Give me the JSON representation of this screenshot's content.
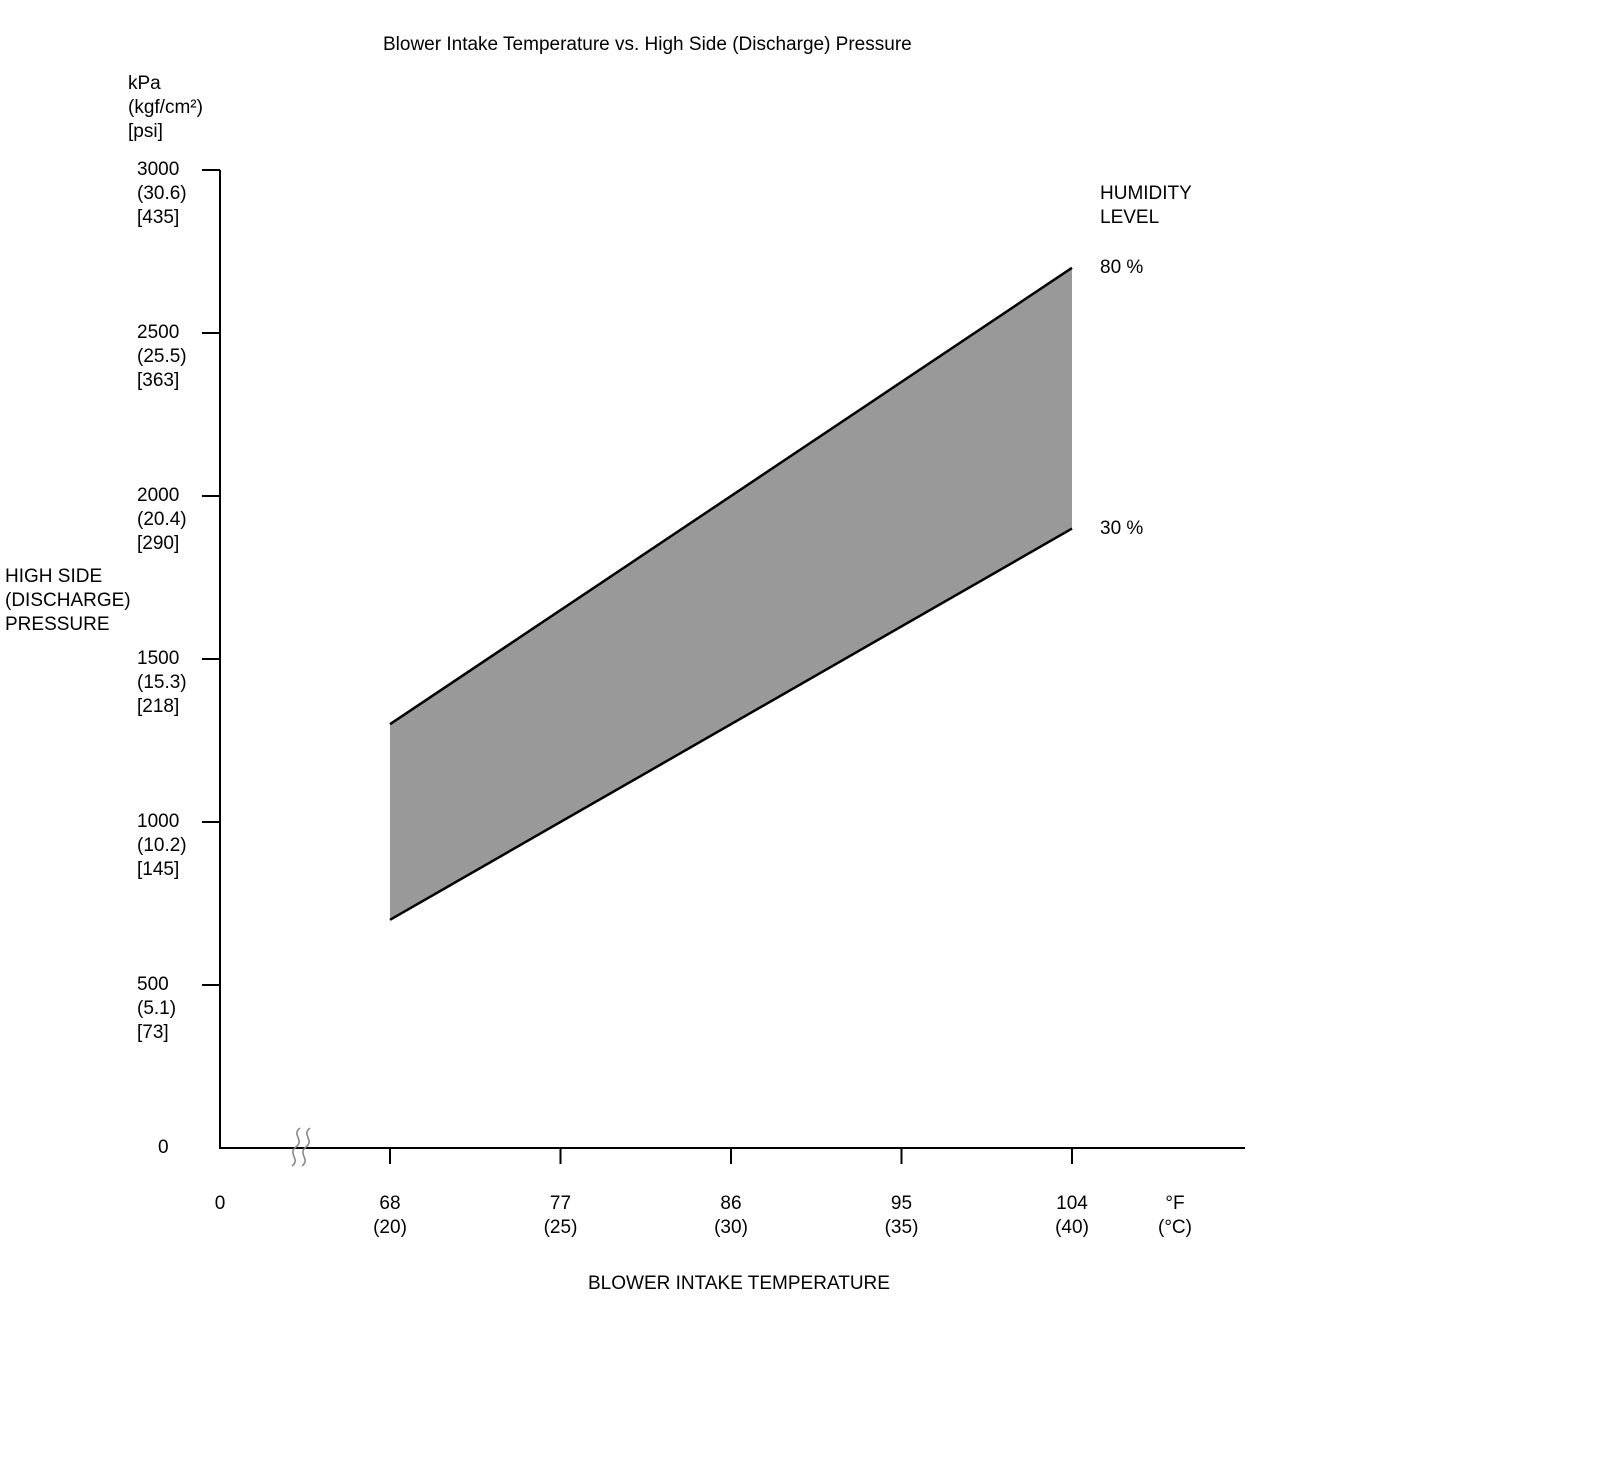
{
  "page": {
    "title": "Blower Intake Temperature vs. High Side (Discharge) Pressure"
  },
  "chart_data": {
    "type": "area",
    "title": "Blower Intake Temperature vs. High Side (Discharge) Pressure",
    "xlabel": "BLOWER INTAKE TEMPERATURE",
    "ylabel_lines": [
      "HIGH SIDE",
      "(DISCHARGE)",
      "PRESSURE"
    ],
    "y_unit_lines": [
      "kPa",
      "(kgf/cm²)",
      "[psi]"
    ],
    "x_unit_lines": [
      "°F",
      "(°C)"
    ],
    "x_axis_origin_label": "0",
    "xlim_f": [
      68,
      104
    ],
    "ylim_kpa": [
      0,
      3000
    ],
    "grid": "off",
    "legend": {
      "position": "top-right",
      "title_lines": [
        "HUMIDITY",
        "LEVEL"
      ]
    },
    "x": [
      68,
      104
    ],
    "x_ticks": [
      {
        "value": 68,
        "lines": [
          "68",
          "(20)"
        ]
      },
      {
        "value": 77,
        "lines": [
          "77",
          "(25)"
        ]
      },
      {
        "value": 86,
        "lines": [
          "86",
          "(30)"
        ]
      },
      {
        "value": 95,
        "lines": [
          "95",
          "(35)"
        ]
      },
      {
        "value": 104,
        "lines": [
          "104",
          "(40)"
        ]
      }
    ],
    "y_ticks": [
      {
        "value": 3000,
        "lines": [
          "3000",
          "(30.6)",
          "[435]"
        ]
      },
      {
        "value": 2500,
        "lines": [
          "2500",
          "(25.5)",
          "[363]"
        ]
      },
      {
        "value": 2000,
        "lines": [
          "2000",
          "(20.4)",
          "[290]"
        ]
      },
      {
        "value": 1500,
        "lines": [
          "1500",
          "(15.3)",
          "[218]"
        ]
      },
      {
        "value": 1000,
        "lines": [
          "1000",
          "(10.2)",
          "[145]"
        ]
      },
      {
        "value": 500,
        "lines": [
          "500",
          "(5.1)",
          "[73]"
        ]
      },
      {
        "value": 0,
        "lines": [
          "0"
        ]
      }
    ],
    "series": [
      {
        "name": "80 %",
        "humidity_percent": 80,
        "values_kpa": [
          1300,
          2700
        ]
      },
      {
        "name": "30 %",
        "humidity_percent": 30,
        "values_kpa": [
          700,
          1900
        ]
      }
    ],
    "band_fill_color": "#999999",
    "line_color": "#000000",
    "axis_color": "#000000",
    "axis_break": true
  }
}
